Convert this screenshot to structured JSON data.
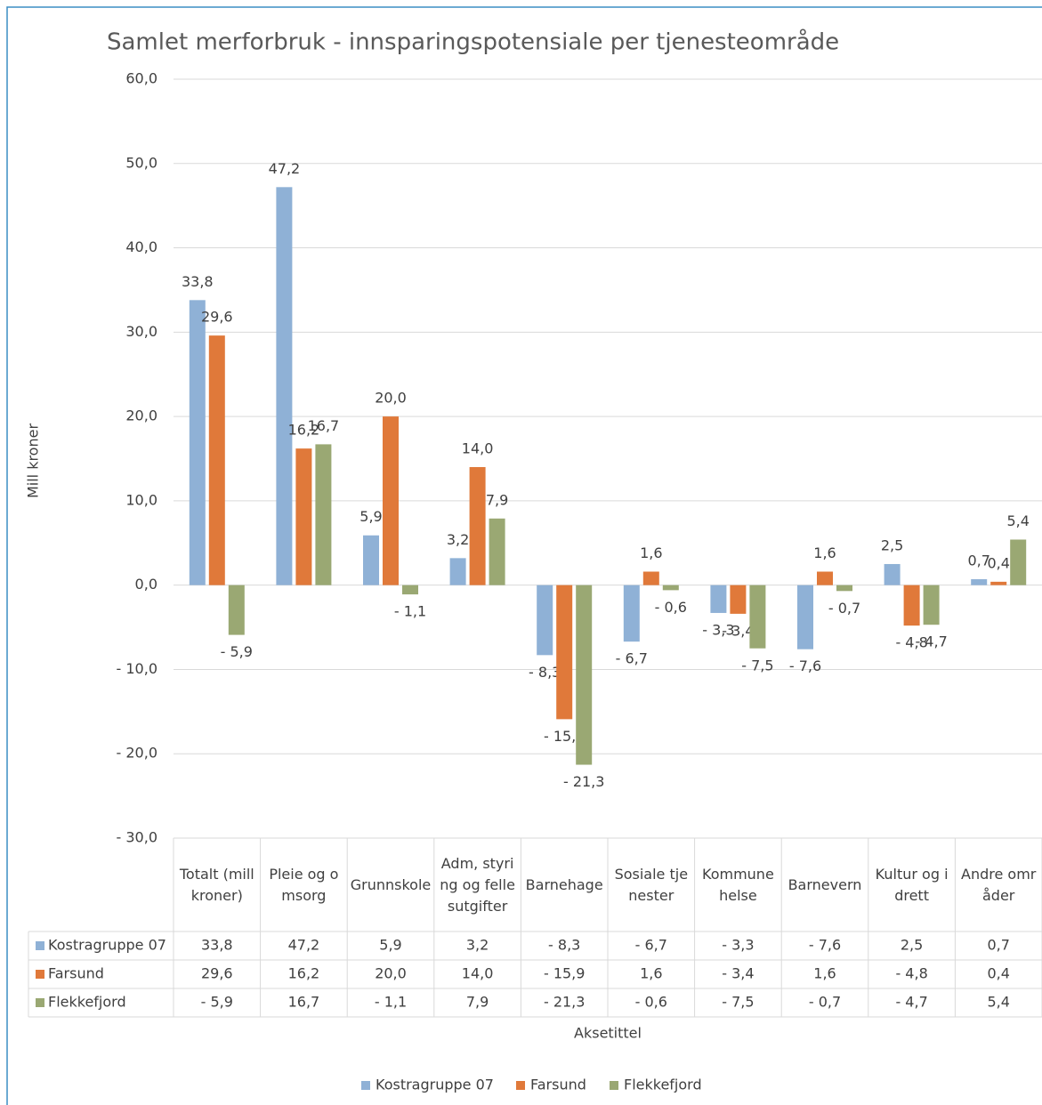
{
  "chart_data": {
    "type": "bar",
    "title": "Samlet merforbruk - innsparingspotensiale per tjenesteområde",
    "y_label": "Mill kroner",
    "x_label": "Aksetittel",
    "categories": [
      "Totalt (mill kroner)",
      "Pleie og omsorg",
      "Grunnskole",
      "Adm, styring og fellesutgifter",
      "Barnehage",
      "Sosiale tjenester",
      "Kommune helse",
      "Barnevern",
      "Kultur og idrett",
      "Andre områder"
    ],
    "series": [
      {
        "name": "Kostragruppe 07",
        "color": "#8fb1d6",
        "values": [
          33.8,
          47.2,
          5.9,
          3.2,
          -8.3,
          -6.7,
          -3.3,
          -7.6,
          2.5,
          0.7
        ],
        "value_labels": [
          "33,8",
          "47,2",
          "5,9",
          "3,2",
          "- 8,3",
          "- 6,7",
          "- 3,3",
          "- 7,6",
          "2,5",
          "0,7"
        ]
      },
      {
        "name": "Farsund",
        "color": "#e0793a",
        "values": [
          29.6,
          16.2,
          20.0,
          14.0,
          -15.9,
          1.6,
          -3.4,
          1.6,
          -4.8,
          0.4
        ],
        "value_labels": [
          "29,6",
          "16,2",
          "20,0",
          "14,0",
          "- 15,9",
          "1,6",
          "- 3,4",
          "1,6",
          "- 4,8",
          "0,4"
        ]
      },
      {
        "name": "Flekkefjord",
        "color": "#9aa873",
        "values": [
          -5.9,
          16.7,
          -1.1,
          7.9,
          -21.3,
          -0.6,
          -7.5,
          -0.7,
          -4.7,
          5.4
        ],
        "value_labels": [
          "- 5,9",
          "16,7",
          "- 1,1",
          "7,9",
          "- 21,3",
          "- 0,6",
          "- 7,5",
          "- 0,7",
          "- 4,7",
          "5,4"
        ]
      }
    ],
    "ylim": [
      -30,
      60
    ],
    "yticks": [
      {
        "value": -30,
        "label": "- 30,0"
      },
      {
        "value": -20,
        "label": "- 20,0"
      },
      {
        "value": -10,
        "label": "- 10,0"
      },
      {
        "value": 0,
        "label": "0,0"
      },
      {
        "value": 10,
        "label": "10,0"
      },
      {
        "value": 20,
        "label": "20,0"
      },
      {
        "value": 30,
        "label": "30,0"
      },
      {
        "value": 40,
        "label": "40,0"
      },
      {
        "value": 50,
        "label": "50,0"
      },
      {
        "value": 60,
        "label": "60,0"
      }
    ],
    "grid": true,
    "legend": "bottom"
  }
}
